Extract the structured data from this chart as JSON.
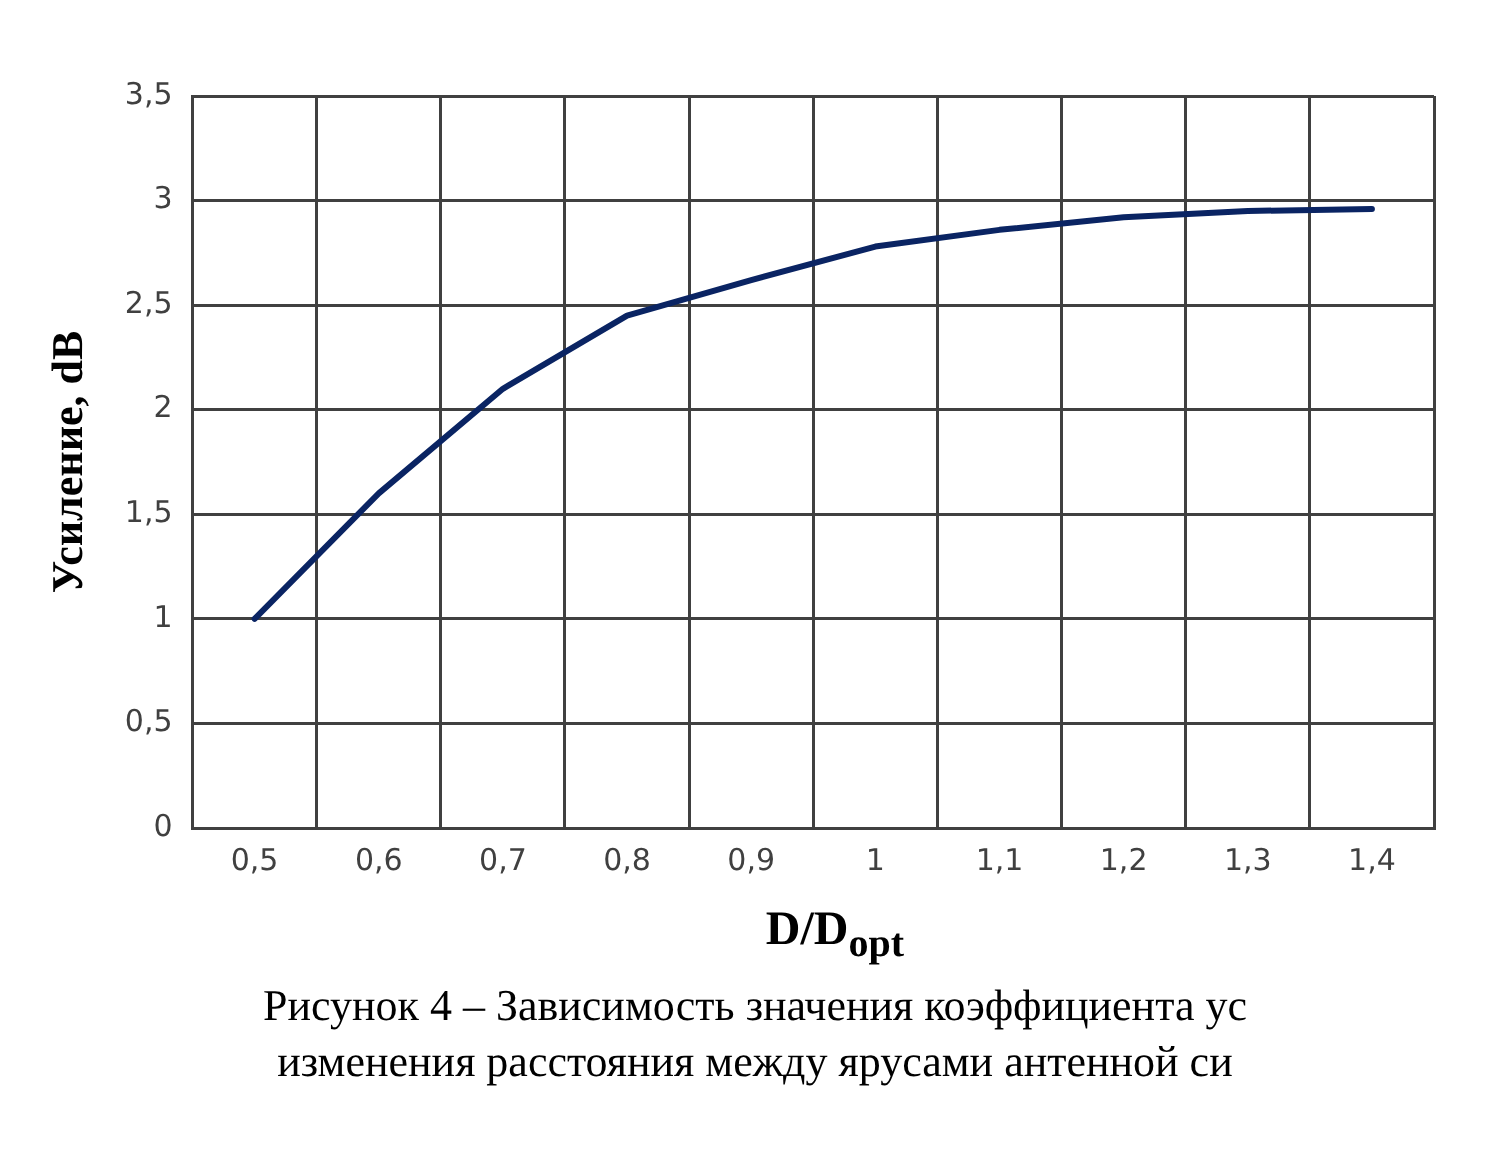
{
  "chart_data": {
    "type": "line",
    "xlabel": "D/D$_{opt}$",
    "ylabel": "Усиление, dB",
    "categories": [
      "0,5",
      "0,6",
      "0,7",
      "0,8",
      "0,9",
      "1",
      "1,1",
      "1,2",
      "1,3",
      "1,4"
    ],
    "series": [
      {
        "color": "#0a2463",
        "values": [
          1,
          1.6,
          2.1,
          2.45,
          2.62,
          2.78,
          2.86,
          2.92,
          2.95,
          2.96
        ]
      }
    ],
    "ylim": [
      0,
      3.5
    ],
    "yticks": [
      0,
      {
        "value": 0.5,
        "label": "0,5"
      },
      1,
      {
        "value": 1.5,
        "label": "1,5"
      },
      2,
      {
        "value": 2.5,
        "label": "2,5"
      },
      3,
      {
        "value": 3.5,
        "label": "3,5"
      }
    ],
    "grid": true,
    "legend": false,
    "marker": "none",
    "line_style": "solid",
    "annotations": [
      "Рисунок 4 – Зависимость значения коэффициента ус",
      "изменения расстояния между ярусами антенной си"
    ]
  }
}
